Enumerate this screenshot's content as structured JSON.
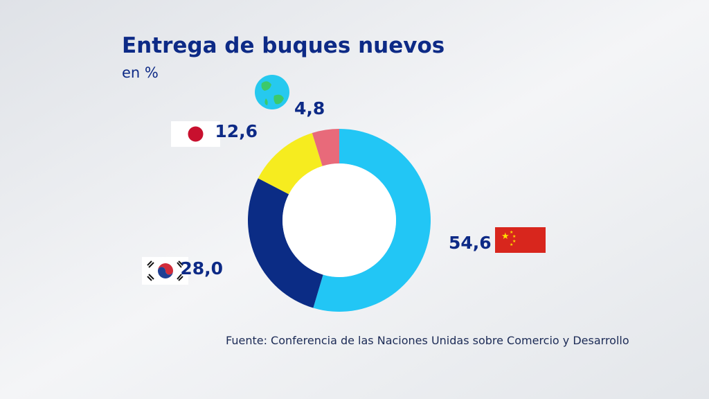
{
  "chart_data": {
    "type": "donut",
    "title": "Entrega de buques nuevos",
    "subtitle": "en %",
    "values": [
      54.6,
      28.0,
      12.6,
      4.8
    ],
    "value_labels": [
      "54,6",
      "28,0",
      "12,6",
      "4,8"
    ],
    "colors": [
      "#22c6f5",
      "#0b2c85",
      "#f6ec1f",
      "#e86a7a"
    ],
    "source": "Fuente: Conferencia de las Naciones Unidas sobre Comercio y Desarrollo"
  }
}
